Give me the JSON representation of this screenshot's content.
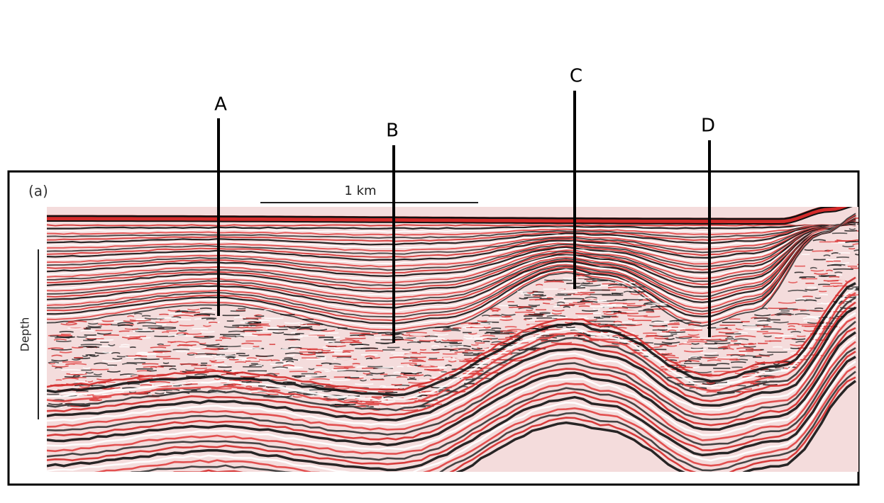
{
  "panel_label": "(a)",
  "scale_bar": "1 km",
  "axis_label": "Depth",
  "markers": [
    "A",
    "B",
    "C",
    "D"
  ]
}
